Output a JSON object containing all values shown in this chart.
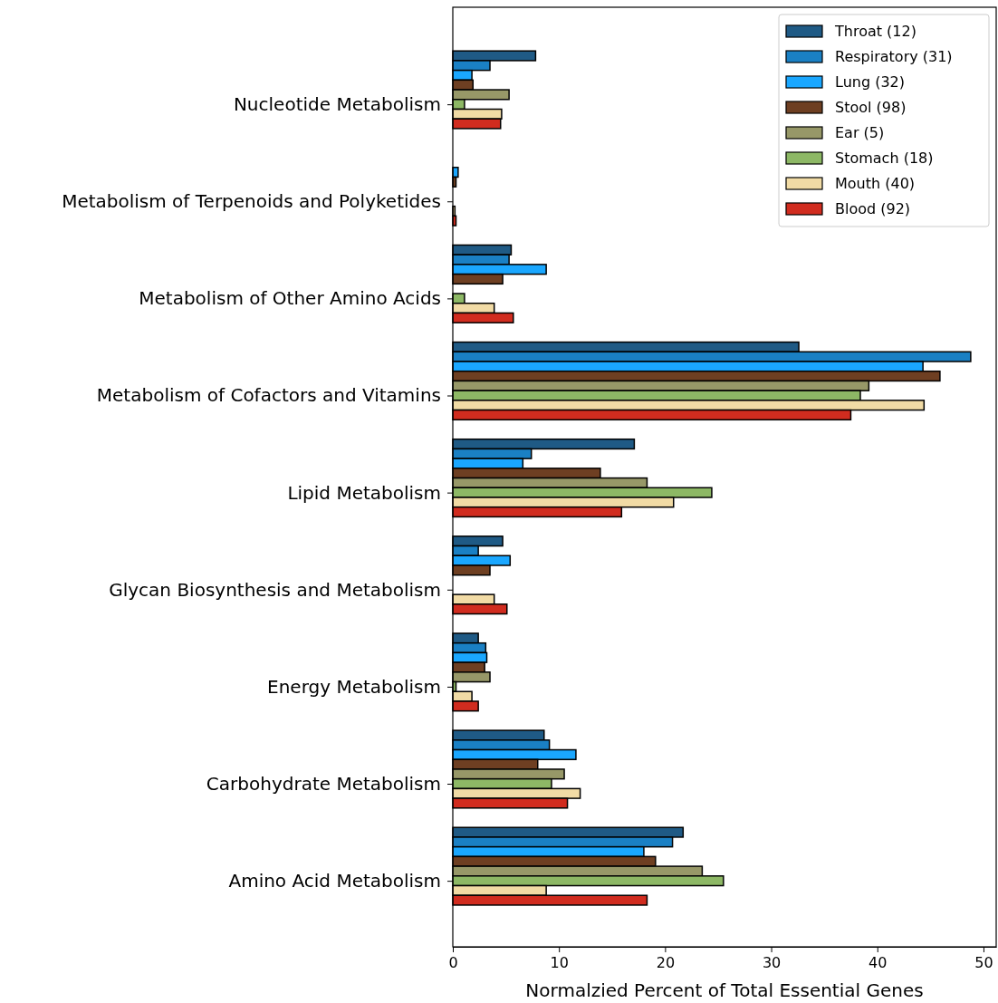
{
  "chart_data": {
    "type": "bar",
    "orientation": "horizontal",
    "xlabel": "Normalzied Percent of Total Essential Genes",
    "categories": [
      "Nucleotide Metabolism",
      "Metabolism of Terpenoids and Polyketides",
      "Metabolism of Other Amino Acids",
      "Metabolism of Cofactors and Vitamins",
      "Lipid Metabolism",
      "Glycan Biosynthesis and Metabolism",
      "Energy Metabolism",
      "Carbohydrate Metabolism",
      "Amino Acid Metabolism"
    ],
    "xlim": [
      0,
      51.2
    ],
    "xticks": [
      0,
      10,
      20,
      30,
      40,
      50
    ],
    "legend": "top right",
    "grid": false,
    "series": [
      {
        "name": "Throat (12)",
        "color": "#1f5a85",
        "values": [
          7.8,
          0,
          5.5,
          32.6,
          17.1,
          4.7,
          2.4,
          8.6,
          21.7
        ]
      },
      {
        "name": "Respiratory (31)",
        "color": "#1a80c4",
        "values": [
          3.5,
          0,
          5.3,
          48.8,
          7.4,
          2.4,
          3.1,
          9.1,
          20.7
        ]
      },
      {
        "name": "Lung (32)",
        "color": "#1aa7ff",
        "values": [
          1.8,
          0.5,
          8.8,
          44.3,
          6.6,
          5.4,
          3.2,
          11.6,
          18.0
        ]
      },
      {
        "name": "Stool (98)",
        "color": "#6e3f22",
        "values": [
          1.9,
          0.3,
          4.7,
          45.9,
          13.9,
          3.5,
          3.0,
          8.0,
          19.1
        ]
      },
      {
        "name": "Ear (5)",
        "color": "#979868",
        "values": [
          5.3,
          0,
          0,
          39.2,
          18.3,
          0,
          3.5,
          10.5,
          23.5
        ]
      },
      {
        "name": "Stomach (18)",
        "color": "#8db865",
        "values": [
          1.1,
          0,
          1.1,
          38.4,
          24.4,
          0,
          0.3,
          9.3,
          25.5
        ]
      },
      {
        "name": "Mouth (40)",
        "color": "#f1dba5",
        "values": [
          4.6,
          0.2,
          3.9,
          44.4,
          20.8,
          3.9,
          1.8,
          12.0,
          8.8
        ]
      },
      {
        "name": "Blood (92)",
        "color": "#d12c1f",
        "values": [
          4.5,
          0.3,
          5.7,
          37.5,
          15.9,
          5.1,
          2.4,
          10.8,
          18.3
        ]
      }
    ]
  }
}
